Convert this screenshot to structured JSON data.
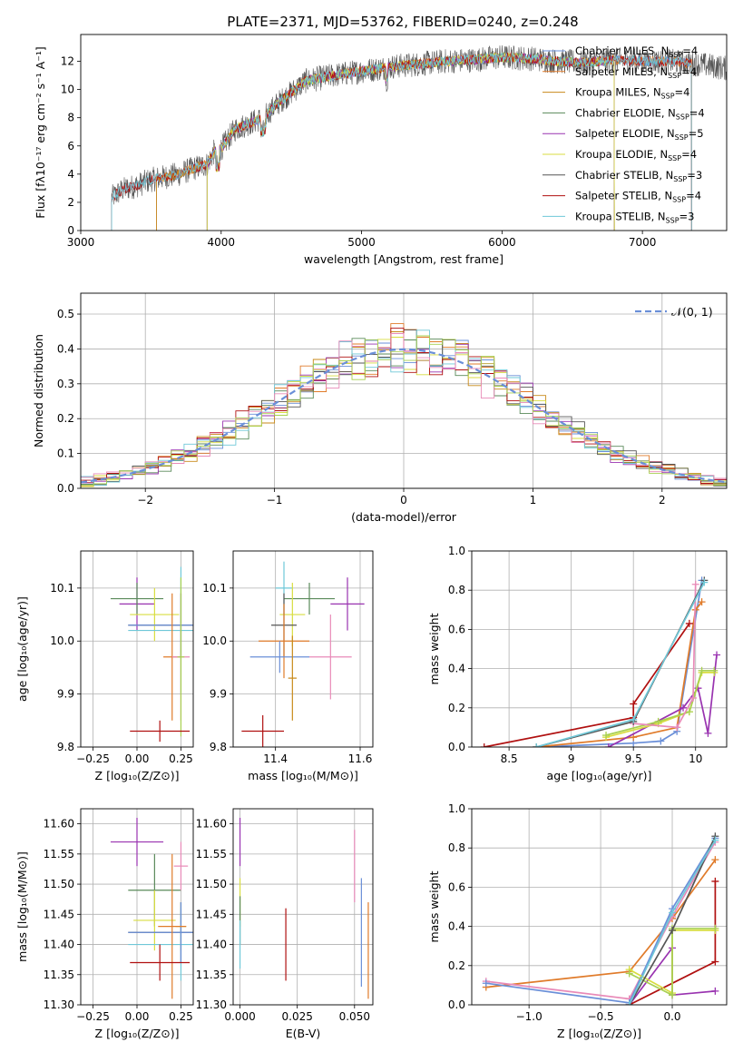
{
  "title": "PLATE=2371, MJD=53762, FIBERID=0240, z=0.248",
  "colors": [
    "#6a8fd8",
    "#e07b2a",
    "#c88a1a",
    "#5a8a5a",
    "#9933b0",
    "#d8dd40",
    "#555555",
    "#b01010",
    "#6fc8d8",
    "#e88ab8",
    "#a8d050"
  ],
  "chart_data": [
    {
      "id": "spectrum",
      "type": "line",
      "title": "PLATE=2371, MJD=53762, FIBERID=0240, z=0.248",
      "xlabel": "wavelength [Angstrom, rest frame]",
      "ylabel": "Flux [fλ10⁻¹⁷ erg cm⁻² s⁻¹ A⁻¹]",
      "xlim": [
        3000,
        7600
      ],
      "ylim": [
        0,
        13.9
      ],
      "xticks": [
        3000,
        4000,
        5000,
        6000,
        7000
      ],
      "yticks": [
        0,
        2,
        4,
        6,
        8,
        10,
        12
      ],
      "legend_position": "top-right",
      "series": [
        {
          "name": "Chabrier MILES, N_SSP=4",
          "color": "#6a8fd8",
          "x_start": 3540,
          "x_end": 7350
        },
        {
          "name": "Salpeter MILES, N_SSP=4",
          "color": "#e07b2a",
          "x_start": 3540,
          "x_end": 7350
        },
        {
          "name": "Kroupa MILES, N_SSP=4",
          "color": "#c88a1a",
          "x_start": 3540,
          "x_end": 6800
        },
        {
          "name": "Chabrier ELODIE, N_SSP=4",
          "color": "#5a8a5a",
          "x_start": 3900,
          "x_end": 6800
        },
        {
          "name": "Salpeter ELODIE, N_SSP=5",
          "color": "#9933b0",
          "x_start": 3900,
          "x_end": 6800
        },
        {
          "name": "Kroupa ELODIE, N_SSP=4",
          "color": "#d8dd40",
          "x_start": 3900,
          "x_end": 6800
        },
        {
          "name": "Chabrier STELIB, N_SSP=3",
          "color": "#555555",
          "x_start": 3220,
          "x_end": 7600
        },
        {
          "name": "Salpeter STELIB, N_SSP=4",
          "color": "#b01010",
          "x_start": 3220,
          "x_end": 7350
        },
        {
          "name": "Kroupa STELIB, N_SSP=3",
          "color": "#6fc8d8",
          "x_start": 3220,
          "x_end": 7350
        }
      ],
      "continuum": {
        "x": [
          3200,
          3300,
          3400,
          3500,
          3600,
          3700,
          3800,
          3900,
          3950,
          4000,
          4100,
          4200,
          4300,
          4400,
          4500,
          4600,
          4800,
          5000,
          5200,
          5400,
          5600,
          5800,
          6000,
          6200,
          6400,
          6600,
          6800,
          7000,
          7200,
          7400,
          7600
        ],
        "y": [
          2.2,
          2.9,
          3.2,
          3.6,
          3.8,
          4.0,
          4.4,
          4.7,
          5.6,
          5.8,
          7.2,
          7.6,
          8.0,
          9.0,
          9.8,
          10.6,
          11.0,
          11.3,
          11.6,
          11.8,
          12.0,
          12.1,
          12.3,
          12.2,
          12.0,
          11.9,
          12.1,
          12.0,
          12.0,
          11.8,
          11.5
        ]
      }
    },
    {
      "id": "residuals",
      "type": "line",
      "xlabel": "(data-model)/error",
      "ylabel": "Normed distribution",
      "xlim": [
        -2.5,
        2.5
      ],
      "ylim": [
        0,
        0.56
      ],
      "xticks": [
        -2,
        -1,
        0,
        1,
        2
      ],
      "yticks": [
        0.0,
        0.1,
        0.2,
        0.3,
        0.4,
        0.5
      ],
      "grid": true,
      "legend_position": "top-right",
      "legend": "𝒩(0, 1)",
      "bin_width": 0.1,
      "series_colors": [
        "#6a8fd8",
        "#e07b2a",
        "#c88a1a",
        "#5a8a5a",
        "#9933b0",
        "#d8dd40",
        "#555555",
        "#b01010",
        "#6fc8d8",
        "#e88ab8",
        "#a8d050"
      ]
    },
    {
      "id": "age-vs-Z",
      "type": "scatter",
      "xlabel": "Z [log₁₀(Z/Z⊙)]",
      "ylabel": "age  [log₁₀(age/yr)]",
      "xlim": [
        -0.32,
        0.32
      ],
      "ylim": [
        9.8,
        10.17
      ],
      "xticks": [
        -0.25,
        0.0,
        0.25
      ],
      "xticklabels": [
        "−0.25",
        "0.00",
        "0.25"
      ],
      "yticks": [
        9.8,
        9.9,
        10.0,
        10.1
      ],
      "grid": true,
      "points": [
        {
          "x": 0.25,
          "y": 10.03,
          "xerr": 0.3,
          "yerr": 0.06,
          "color": "#555555"
        },
        {
          "x": 0.0,
          "y": 10.07,
          "xerr": 0.1,
          "yerr": 0.05,
          "color": "#9933b0"
        },
        {
          "x": 0.0,
          "y": 10.08,
          "xerr": 0.15,
          "yerr": 0.03,
          "color": "#5a8a5a"
        },
        {
          "x": 0.1,
          "y": 10.05,
          "xerr": 0.14,
          "yerr": 0.05,
          "color": "#d8dd40"
        },
        {
          "x": 0.25,
          "y": 10.03,
          "xerr": 0.3,
          "yerr": 0.06,
          "color": "#6a8fd8"
        },
        {
          "x": 0.25,
          "y": 10.02,
          "xerr": 0.3,
          "yerr": 0.12,
          "color": "#6fc8d8"
        },
        {
          "x": 0.2,
          "y": 9.97,
          "xerr": 0.05,
          "yerr": 0.12,
          "color": "#e07b2a"
        },
        {
          "x": 0.25,
          "y": 9.97,
          "xerr": 0.05,
          "yerr": 0.12,
          "color": "#e88ab8"
        },
        {
          "x": 0.25,
          "y": 9.97,
          "xerr": 0.02,
          "yerr": 0.15,
          "color": "#a8d050"
        },
        {
          "x": 0.13,
          "y": 9.83,
          "xerr": 0.17,
          "yerr": 0.02,
          "color": "#b01010"
        }
      ]
    },
    {
      "id": "age-vs-mass",
      "type": "scatter",
      "xlabel": "mass [log₁₀(M/M⊙)]",
      "xlim": [
        11.3,
        11.63
      ],
      "ylim": [
        9.8,
        10.17
      ],
      "xticks": [
        11.4,
        11.6
      ],
      "yticks": [
        9.8,
        9.9,
        10.0,
        10.1
      ],
      "grid": true,
      "points": [
        {
          "x": 11.42,
          "y": 10.1,
          "xerr": 0.02,
          "yerr": 0.05,
          "color": "#6fc8d8"
        },
        {
          "x": 11.48,
          "y": 10.08,
          "xerr": 0.06,
          "yerr": 0.03,
          "color": "#5a8a5a"
        },
        {
          "x": 11.57,
          "y": 10.07,
          "xerr": 0.04,
          "yerr": 0.05,
          "color": "#9933b0"
        },
        {
          "x": 11.44,
          "y": 10.05,
          "xerr": 0.03,
          "yerr": 0.06,
          "color": "#d8dd40"
        },
        {
          "x": 11.42,
          "y": 10.03,
          "xerr": 0.03,
          "yerr": 0.06,
          "color": "#555555"
        },
        {
          "x": 11.42,
          "y": 10.0,
          "xerr": 0.06,
          "yerr": 0.07,
          "color": "#e07b2a"
        },
        {
          "x": 11.53,
          "y": 9.97,
          "xerr": 0.05,
          "yerr": 0.08,
          "color": "#e88ab8"
        },
        {
          "x": 11.41,
          "y": 9.97,
          "xerr": 0.07,
          "yerr": 0.03,
          "color": "#6a8fd8"
        },
        {
          "x": 11.44,
          "y": 9.93,
          "xerr": 0.01,
          "yerr": 0.08,
          "color": "#c88a1a"
        },
        {
          "x": 11.37,
          "y": 9.83,
          "xerr": 0.05,
          "yerr": 0.03,
          "color": "#b01010"
        }
      ]
    },
    {
      "id": "weight-vs-age",
      "type": "line",
      "xlabel": "age  [log₁₀(age/yr)]",
      "ylabel": "mass weight",
      "xlim": [
        8.2,
        10.25
      ],
      "ylim": [
        0,
        1.0
      ],
      "xticks": [
        8.5,
        9.0,
        9.5,
        10.0
      ],
      "yticks": [
        0.0,
        0.2,
        0.4,
        0.6,
        0.8,
        1.0
      ],
      "grid": true,
      "series": [
        {
          "color": "#6a8fd8",
          "x": [
            8.72,
            9.5,
            9.72,
            9.85,
            10.05
          ],
          "y": [
            0.0,
            0.02,
            0.03,
            0.08,
            0.85
          ]
        },
        {
          "color": "#e07b2a",
          "x": [
            8.72,
            9.5,
            9.85,
            10.0,
            10.05
          ],
          "y": [
            0.0,
            0.05,
            0.1,
            0.7,
            0.74
          ]
        },
        {
          "color": "#9933b0",
          "x": [
            9.3,
            9.9,
            10.02,
            10.1,
            10.17
          ],
          "y": [
            0.0,
            0.2,
            0.3,
            0.07,
            0.47
          ]
        },
        {
          "color": "#d8dd40",
          "x": [
            9.28,
            9.7,
            9.95,
            10.05,
            10.15
          ],
          "y": [
            0.05,
            0.12,
            0.18,
            0.38,
            0.38
          ]
        },
        {
          "color": "#a8d050",
          "x": [
            9.28,
            9.7,
            9.95,
            10.05,
            10.15
          ],
          "y": [
            0.06,
            0.13,
            0.18,
            0.39,
            0.39
          ]
        },
        {
          "color": "#e88ab8",
          "x": [
            9.5,
            9.85,
            9.98,
            10.0
          ],
          "y": [
            0.12,
            0.1,
            0.25,
            0.83
          ]
        },
        {
          "color": "#b01010",
          "x": [
            8.3,
            9.5,
            9.5,
            9.95
          ],
          "y": [
            0.0,
            0.15,
            0.22,
            0.63
          ]
        },
        {
          "color": "#555555",
          "x": [
            8.72,
            9.5,
            10.07
          ],
          "y": [
            0.0,
            0.13,
            0.85
          ]
        },
        {
          "color": "#6fc8d8",
          "x": [
            8.72,
            9.5,
            10.07
          ],
          "y": [
            0.0,
            0.14,
            0.84
          ]
        }
      ]
    },
    {
      "id": "mass-vs-Z",
      "type": "scatter",
      "xlabel": "Z [log₁₀(Z/Z⊙)]",
      "ylabel": "mass [log₁₀(M/M⊙)]",
      "xlim": [
        -0.32,
        0.32
      ],
      "ylim": [
        11.3,
        11.625
      ],
      "xticks": [
        -0.25,
        0.0,
        0.25
      ],
      "xticklabels": [
        "−0.25",
        "0.00",
        "0.25"
      ],
      "yticks": [
        11.3,
        11.35,
        11.4,
        11.45,
        11.5,
        11.55,
        11.6
      ],
      "grid": true,
      "points": [
        {
          "x": 0.0,
          "y": 11.57,
          "xerr": 0.15,
          "yerr": 0.04,
          "color": "#9933b0"
        },
        {
          "x": 0.1,
          "y": 11.49,
          "xerr": 0.15,
          "yerr": 0.06,
          "color": "#5a8a5a"
        },
        {
          "x": 0.25,
          "y": 11.53,
          "xerr": 0.04,
          "yerr": 0.04,
          "color": "#e88ab8"
        },
        {
          "x": 0.1,
          "y": 11.44,
          "xerr": 0.12,
          "yerr": 0.05,
          "color": "#d8dd40"
        },
        {
          "x": 0.25,
          "y": 11.43,
          "xerr": 0.03,
          "yerr": 0.04,
          "color": "#a8d050"
        },
        {
          "x": 0.25,
          "y": 11.42,
          "xerr": 0.3,
          "yerr": 0.05,
          "color": "#555555"
        },
        {
          "x": 0.25,
          "y": 11.4,
          "xerr": 0.3,
          "yerr": 0.06,
          "color": "#6fc8d8"
        },
        {
          "x": 0.25,
          "y": 11.42,
          "xerr": 0.3,
          "yerr": 0.05,
          "color": "#6a8fd8"
        },
        {
          "x": 0.2,
          "y": 11.43,
          "xerr": 0.08,
          "yerr": 0.12,
          "color": "#e07b2a"
        },
        {
          "x": 0.13,
          "y": 11.37,
          "xerr": 0.17,
          "yerr": 0.03,
          "color": "#b01010"
        }
      ]
    },
    {
      "id": "mass-vs-ebv",
      "type": "scatter",
      "xlabel": "E(B-V)",
      "xlim": [
        -0.003,
        0.058
      ],
      "ylim": [
        11.3,
        11.625
      ],
      "xticks": [
        0.0,
        0.025,
        0.05
      ],
      "xticklabels": [
        "0.000",
        "0.025",
        "0.050"
      ],
      "yticks": [
        11.3,
        11.35,
        11.4,
        11.45,
        11.5,
        11.55,
        11.6
      ],
      "grid": true,
      "points": [
        {
          "x": 0.0,
          "y": 11.57,
          "yerr": 0.04,
          "color": "#9933b0"
        },
        {
          "x": 0.0,
          "y": 11.47,
          "yerr": 0.04,
          "color": "#d8dd40"
        },
        {
          "x": 0.0,
          "y": 11.44,
          "yerr": 0.04,
          "color": "#5a8a5a"
        },
        {
          "x": 0.0,
          "y": 11.4,
          "yerr": 0.04,
          "color": "#6fc8d8"
        },
        {
          "x": 0.02,
          "y": 11.4,
          "yerr": 0.06,
          "color": "#b01010"
        },
        {
          "x": 0.05,
          "y": 11.53,
          "yerr": 0.06,
          "color": "#e88ab8"
        },
        {
          "x": 0.053,
          "y": 11.42,
          "yerr": 0.09,
          "color": "#6a8fd8"
        },
        {
          "x": 0.056,
          "y": 11.39,
          "yerr": 0.08,
          "color": "#e07b2a"
        }
      ]
    },
    {
      "id": "weight-vs-Z",
      "type": "line",
      "xlabel": "Z [log₁₀(Z/Z⊙)]",
      "ylabel": "mass weight",
      "xlim": [
        -1.4,
        0.38
      ],
      "ylim": [
        0,
        1.0
      ],
      "xticks": [
        -1.0,
        -0.5,
        0.0
      ],
      "xticklabels": [
        "−1.0",
        "−0.5",
        "0.0"
      ],
      "yticks": [
        0.0,
        0.2,
        0.4,
        0.6,
        0.8,
        1.0
      ],
      "grid": true,
      "series": [
        {
          "color": "#e07b2a",
          "x": [
            -1.3,
            -0.3,
            0.0,
            0.3
          ],
          "y": [
            0.09,
            0.17,
            0.44,
            0.74
          ]
        },
        {
          "color": "#e88ab8",
          "x": [
            -1.3,
            -0.3,
            0.0,
            0.3
          ],
          "y": [
            0.12,
            0.03,
            0.45,
            0.83
          ]
        },
        {
          "color": "#6a8fd8",
          "x": [
            -1.3,
            -0.3,
            0.0,
            0.3
          ],
          "y": [
            0.11,
            0.01,
            0.49,
            0.85
          ]
        },
        {
          "color": "#9933b0",
          "x": [
            -0.3,
            0.0,
            0.0,
            0.3
          ],
          "y": [
            0.0,
            0.29,
            0.05,
            0.07
          ]
        },
        {
          "color": "#b01010",
          "x": [
            -0.3,
            0.3,
            0.3
          ],
          "y": [
            0.0,
            0.22,
            0.63
          ]
        },
        {
          "color": "#d8dd40",
          "x": [
            -0.3,
            0.0,
            0.0,
            0.3
          ],
          "y": [
            0.18,
            0.06,
            0.38,
            0.38
          ]
        },
        {
          "color": "#a8d050",
          "x": [
            -0.3,
            0.0,
            0.0,
            0.3
          ],
          "y": [
            0.16,
            0.05,
            0.39,
            0.39
          ]
        },
        {
          "color": "#555555",
          "x": [
            -0.3,
            0.0,
            0.3
          ],
          "y": [
            0.0,
            0.38,
            0.86
          ]
        },
        {
          "color": "#6fc8d8",
          "x": [
            -0.3,
            0.0,
            0.3
          ],
          "y": [
            0.0,
            0.47,
            0.84
          ]
        }
      ]
    }
  ]
}
